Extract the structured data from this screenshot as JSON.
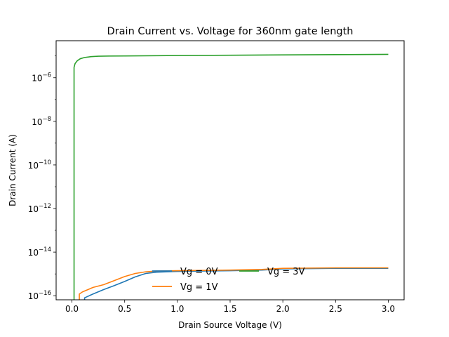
{
  "chart_data": {
    "type": "line",
    "title": "Drain Current vs. Voltage for 360nm gate length",
    "xlabel": "Drain Source Voltage (V)",
    "ylabel": "Drain Current (A)",
    "xlim": [
      -0.15,
      3.15
    ],
    "ylim": [
      6.5e-17,
      5e-05
    ],
    "yscale": "log",
    "grid": false,
    "legend_position": "lower-center",
    "xticks": [
      {
        "value": 0.0,
        "label": "0.0"
      },
      {
        "value": 0.5,
        "label": "0.5"
      },
      {
        "value": 1.0,
        "label": "1.0"
      },
      {
        "value": 1.5,
        "label": "1.5"
      },
      {
        "value": 2.0,
        "label": "2.0"
      },
      {
        "value": 2.5,
        "label": "2.5"
      },
      {
        "value": 3.0,
        "label": "3.0"
      }
    ],
    "yticks": [
      {
        "value": 1e-16,
        "base": "10",
        "exp": "−16"
      },
      {
        "value": 1e-14,
        "base": "10",
        "exp": "−14"
      },
      {
        "value": 1e-12,
        "base": "10",
        "exp": "−12"
      },
      {
        "value": 1e-10,
        "base": "10",
        "exp": "−10"
      },
      {
        "value": 1e-08,
        "base": "10",
        "exp": "−8"
      },
      {
        "value": 1e-06,
        "base": "10",
        "exp": "−6"
      }
    ],
    "series": [
      {
        "name": "Vg = 0V",
        "color": "#1f77b4",
        "x": [
          0.12,
          0.12,
          0.2,
          0.3,
          0.4,
          0.5,
          0.6,
          0.7,
          0.8,
          1.0,
          1.2,
          1.5,
          1.8,
          2.0,
          2.5,
          3.0
        ],
        "y": [
          1e-17,
          8e-17,
          1.2e-16,
          1.9e-16,
          2.9e-16,
          4.5e-16,
          7.3e-16,
          1.05e-15,
          1.2e-15,
          1.3e-15,
          1.35e-15,
          1.4e-15,
          1.5e-15,
          1.7e-15,
          1.8e-15,
          1.8e-15
        ]
      },
      {
        "name": "Vg = 1V",
        "color": "#ff7f0e",
        "x": [
          0.07,
          0.07,
          0.1,
          0.2,
          0.3,
          0.4,
          0.5,
          0.6,
          0.7,
          0.8,
          1.0,
          1.2,
          1.5,
          1.8,
          2.0,
          2.5,
          3.0
        ],
        "y": [
          1e-17,
          1.2e-16,
          1.5e-16,
          2.4e-16,
          3.2e-16,
          4.9e-16,
          7.6e-16,
          1.05e-15,
          1.25e-15,
          1.35e-15,
          1.4e-15,
          1.45e-15,
          1.5e-15,
          1.6e-15,
          1.8e-15,
          1.9e-15,
          1.9e-15
        ]
      },
      {
        "name": "Vg = 3V",
        "color": "#2ca02c",
        "x": [
          0.02,
          0.02,
          0.03,
          0.05,
          0.08,
          0.12,
          0.18,
          0.25,
          0.35,
          0.5,
          1.0,
          1.5,
          2.0,
          2.5,
          3.0
        ],
        "y": [
          1e-17,
          3e-06,
          4.5e-06,
          6e-06,
          7.5e-06,
          8.5e-06,
          9.3e-06,
          9.7e-06,
          9.9e-06,
          1e-05,
          1.05e-05,
          1.08e-05,
          1.12e-05,
          1.15e-05,
          1.18e-05
        ]
      }
    ]
  }
}
